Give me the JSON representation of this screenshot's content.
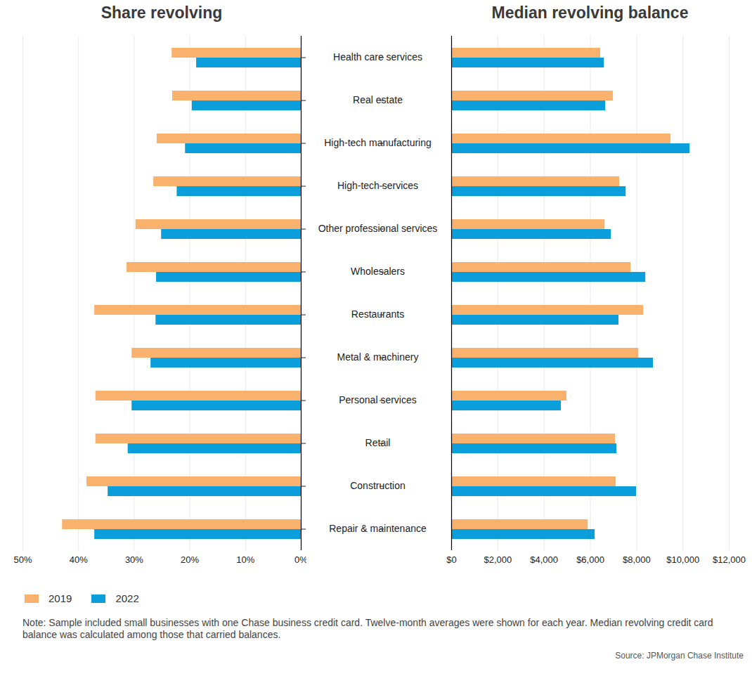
{
  "chart_data": [
    {
      "type": "bar",
      "title": "Share revolving",
      "orientation": "horizontal",
      "categories": [
        "Health care services",
        "Real estate",
        "High-tech manufacturing",
        "High-tech services",
        "Other professional services",
        "Wholesalers",
        "Restaurants",
        "Metal & machinery",
        "Personal services",
        "Retail",
        "Construction",
        "Repair & maintenance"
      ],
      "series": [
        {
          "name": "2019",
          "color": "#F9B16E",
          "values": [
            23.2,
            23.1,
            25.9,
            26.5,
            29.7,
            31.3,
            37.1,
            30.4,
            36.9,
            36.9,
            38.5,
            42.9
          ]
        },
        {
          "name": "2022",
          "color": "#0A9FDA",
          "values": [
            18.8,
            19.6,
            20.8,
            22.3,
            25.1,
            26.0,
            26.1,
            27.0,
            30.4,
            31.1,
            34.7,
            37.1
          ]
        }
      ],
      "xlim": [
        50,
        0
      ],
      "xticks": [
        {
          "value": 50,
          "label": "50%"
        },
        {
          "value": 40,
          "label": "40%"
        },
        {
          "value": 30,
          "label": "30%"
        },
        {
          "value": 20,
          "label": "20%"
        },
        {
          "value": 10,
          "label": "10%"
        },
        {
          "value": 0,
          "label": "0%"
        }
      ],
      "grid": true,
      "legend": "bottom",
      "note": "Note: Sample included small businesses with one Chase business credit card. Twelve-month averages were shown for each year. Median revolving credit card balance was calculated among those that carried balances.",
      "source": "Source: JPMorgan Chase Institute"
    },
    {
      "type": "bar",
      "title": "Median revolving balance",
      "orientation": "horizontal",
      "categories": [
        "Health care services",
        "Real estate",
        "High-tech manufacturing",
        "High-tech services",
        "Other professional services",
        "Wholesalers",
        "Restaurants",
        "Metal & machinery",
        "Personal services",
        "Retail",
        "Construction",
        "Repair & maintenance"
      ],
      "series": [
        {
          "name": "2019",
          "color": "#F9B16E",
          "values": [
            6440,
            6990,
            9480,
            7260,
            6630,
            7750,
            8300,
            8090,
            4980,
            7080,
            7110,
            5900
          ]
        },
        {
          "name": "2022",
          "color": "#0A9FDA",
          "values": [
            6600,
            6660,
            10300,
            7540,
            6900,
            8390,
            7230,
            8720,
            4740,
            7140,
            7990,
            6200
          ]
        }
      ],
      "xlim": [
        0,
        12000
      ],
      "xticks": [
        {
          "value": 0,
          "label": "$0"
        },
        {
          "value": 2000,
          "label": "$2,000"
        },
        {
          "value": 4000,
          "label": "$4,000"
        },
        {
          "value": 6000,
          "label": "$6,000"
        },
        {
          "value": 8000,
          "label": "$8,000"
        },
        {
          "value": 10000,
          "label": "$10,000"
        },
        {
          "value": 12000,
          "label": "$12,000"
        }
      ],
      "grid": true
    }
  ]
}
